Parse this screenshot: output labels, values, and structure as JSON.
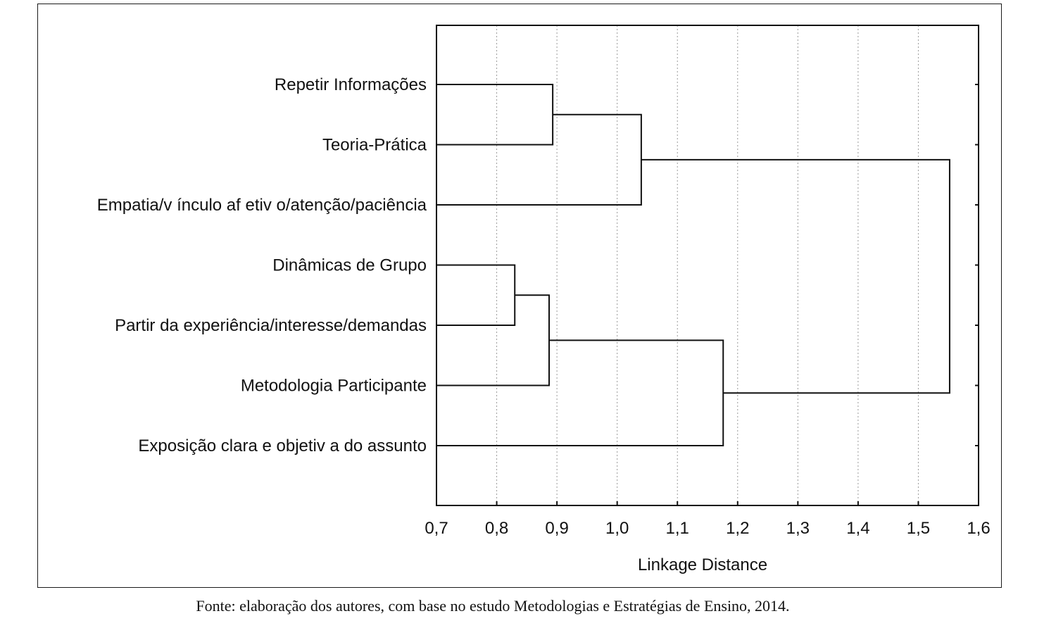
{
  "caption": "Fonte: elaboração dos autores, com base no estudo Metodologias e Estratégias de Ensino, 2014.",
  "chart_data": {
    "type": "dendrogram",
    "orientation": "horizontal",
    "xlabel": "Linkage Distance",
    "xlim": [
      0.7,
      1.6
    ],
    "xticks": [
      "0,7",
      "0,8",
      "0,9",
      "1,0",
      "1,1",
      "1,2",
      "1,3",
      "1,4",
      "1,5",
      "1,6"
    ],
    "xtick_values": [
      0.7,
      0.8,
      0.9,
      1.0,
      1.1,
      1.2,
      1.3,
      1.4,
      1.5,
      1.6
    ],
    "grid": "vertical dotted",
    "leaves": [
      "Repetir Informações",
      "Teoria-Prática",
      "Empatia/v ínculo af etiv o/atenção/paciência",
      "Dinâmicas de Grupo",
      "Partir da experiência/interesse/demandas",
      "Metodologia Participante",
      "Exposição clara e objetiv a do assunto"
    ],
    "merges": [
      {
        "a": "L0",
        "b": "L1",
        "height": 0.893
      },
      {
        "a": "M0",
        "b": "L2",
        "height": 1.04
      },
      {
        "a": "L3",
        "b": "L4",
        "height": 0.83
      },
      {
        "a": "M2",
        "b": "L5",
        "height": 0.887
      },
      {
        "a": "M3",
        "b": "L6",
        "height": 1.176
      },
      {
        "a": "M1",
        "b": "M4",
        "height": 1.552
      }
    ]
  }
}
